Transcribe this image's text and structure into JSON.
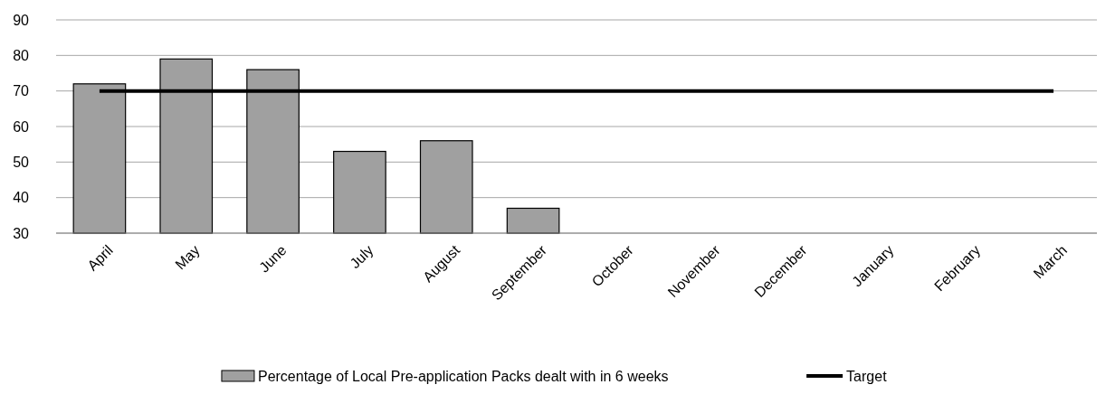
{
  "chart_data": {
    "type": "bar",
    "categories": [
      "April",
      "May",
      "June",
      "July",
      "August",
      "September",
      "October",
      "November",
      "December",
      "January",
      "February",
      "March"
    ],
    "series": [
      {
        "name": "Percentage of Local Pre-application Packs dealt with in 6 weeks",
        "color": "#a0a0a0",
        "values": [
          72,
          79,
          76,
          53,
          56,
          37,
          null,
          null,
          null,
          null,
          null,
          null
        ]
      },
      {
        "name": "Target",
        "type": "line",
        "color": "#000000",
        "values": [
          70,
          70,
          70,
          70,
          70,
          70,
          70,
          70,
          70,
          70,
          70,
          70
        ]
      }
    ],
    "ylim": [
      30,
      90
    ],
    "yticks": [
      30,
      40,
      50,
      60,
      70,
      80,
      90
    ],
    "grid": "y",
    "legend": "bottom",
    "marker": "none",
    "line_style": "solid"
  }
}
